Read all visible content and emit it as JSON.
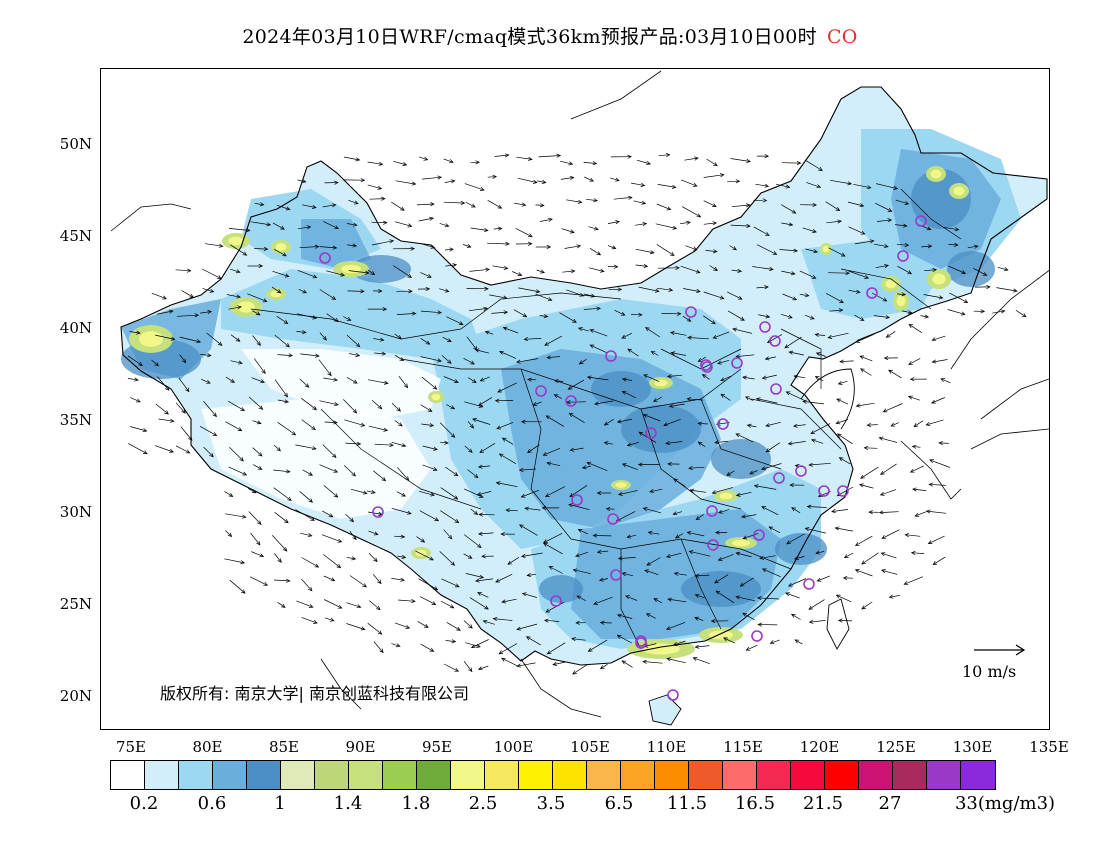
{
  "title": {
    "text": "2024年03月10日WRF/cmaq模式36km预报产品:03月10日00时",
    "species": "CO",
    "species_color": "#e03030"
  },
  "axes": {
    "lat_labels": [
      "50N",
      "45N",
      "40N",
      "35N",
      "30N",
      "25N",
      "20N"
    ],
    "lon_labels": [
      "75E",
      "80E",
      "85E",
      "90E",
      "95E",
      "100E",
      "105E",
      "110E",
      "115E",
      "120E",
      "125E",
      "130E",
      "135E"
    ]
  },
  "copyright": "版权所有: 南京大学| 南京创蓝科技有限公司",
  "wind_reference": {
    "label": "10 m/s"
  },
  "colorbar": {
    "colors": [
      "#ffffff",
      "#d2eefa",
      "#9dd8f2",
      "#6aaedc",
      "#4b8fc4",
      "#dfeab8",
      "#bdd67a",
      "#c5e07c",
      "#9acd50",
      "#70ac3a",
      "#f2f78a",
      "#f5e860",
      "#fef200",
      "#fde400",
      "#f8b64c",
      "#fba526",
      "#fd8c00",
      "#f05a28",
      "#fd6b6b",
      "#f42a52",
      "#f50a3d",
      "#fe0000",
      "#cc1272",
      "#a92a5c",
      "#9a38c8",
      "#8a28dc"
    ],
    "labels": [
      "0.2",
      "0.6",
      "1",
      "1.4",
      "1.8",
      "2.5",
      "3.5",
      "6.5",
      "11.5",
      "16.5",
      "21.5",
      "27",
      "33(mg/m3)"
    ]
  },
  "map_colors": {
    "light_blue": "#d2eefa",
    "mid_blue": "#9dd8f2",
    "blue": "#6aaedc",
    "dark_blue": "#4b8fc4",
    "green_light": "#dfeab8",
    "green": "#c5e07c",
    "yellow": "#f2f78a",
    "marker": "#9a38c8"
  }
}
